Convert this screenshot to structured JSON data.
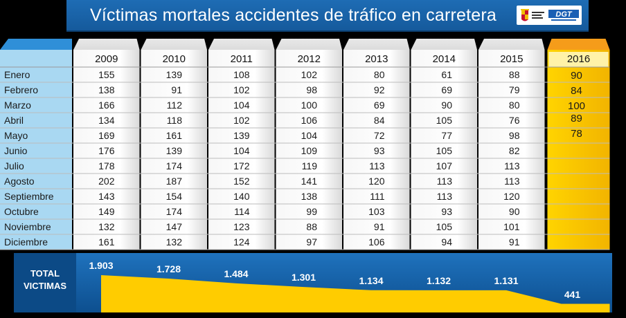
{
  "title": "Víctimas mortales accidentes de tráfico en carretera",
  "logos": {
    "ministry": "ministry-of-interior-logo",
    "dgt": "DGT"
  },
  "colors": {
    "blue": "#1565a8",
    "yellow": "#ffcc00",
    "orange": "#f59c1a",
    "lightblue": "#a9d8f2"
  },
  "chart_data": {
    "type": "table",
    "title": "Víctimas mortales accidentes de tráfico en carretera",
    "years": [
      "2009",
      "2010",
      "2011",
      "2012",
      "2013",
      "2014",
      "2015",
      "2016"
    ],
    "months": [
      "Enero",
      "Febrero",
      "Marzo",
      "Abril",
      "Mayo",
      "Junio",
      "Julio",
      "Agosto",
      "Septiembre",
      "Octubre",
      "Noviembre",
      "Diciembre"
    ],
    "values": {
      "2009": [
        155,
        138,
        166,
        134,
        169,
        176,
        178,
        202,
        143,
        149,
        132,
        161
      ],
      "2010": [
        139,
        91,
        112,
        118,
        161,
        139,
        174,
        187,
        154,
        174,
        147,
        132
      ],
      "2011": [
        108,
        102,
        104,
        102,
        139,
        104,
        172,
        152,
        140,
        114,
        123,
        124
      ],
      "2012": [
        102,
        98,
        100,
        106,
        104,
        109,
        119,
        141,
        138,
        99,
        88,
        97
      ],
      "2013": [
        80,
        92,
        69,
        84,
        72,
        93,
        113,
        120,
        111,
        103,
        91,
        106
      ],
      "2014": [
        61,
        69,
        90,
        105,
        77,
        105,
        107,
        113,
        113,
        93,
        105,
        94
      ],
      "2015": [
        88,
        79,
        80,
        76,
        98,
        82,
        113,
        113,
        120,
        90,
        101,
        91
      ],
      "2016": [
        90,
        84,
        100,
        89,
        78
      ]
    },
    "total_label": [
      "TOTAL",
      "VICTIMAS"
    ],
    "totals": [
      "1.903",
      "1.728",
      "1.484",
      "1.301",
      "1.134",
      "1.132",
      "1.131",
      "441"
    ],
    "total_numeric": [
      1903,
      1728,
      1484,
      1301,
      1134,
      1132,
      1131,
      441
    ]
  }
}
